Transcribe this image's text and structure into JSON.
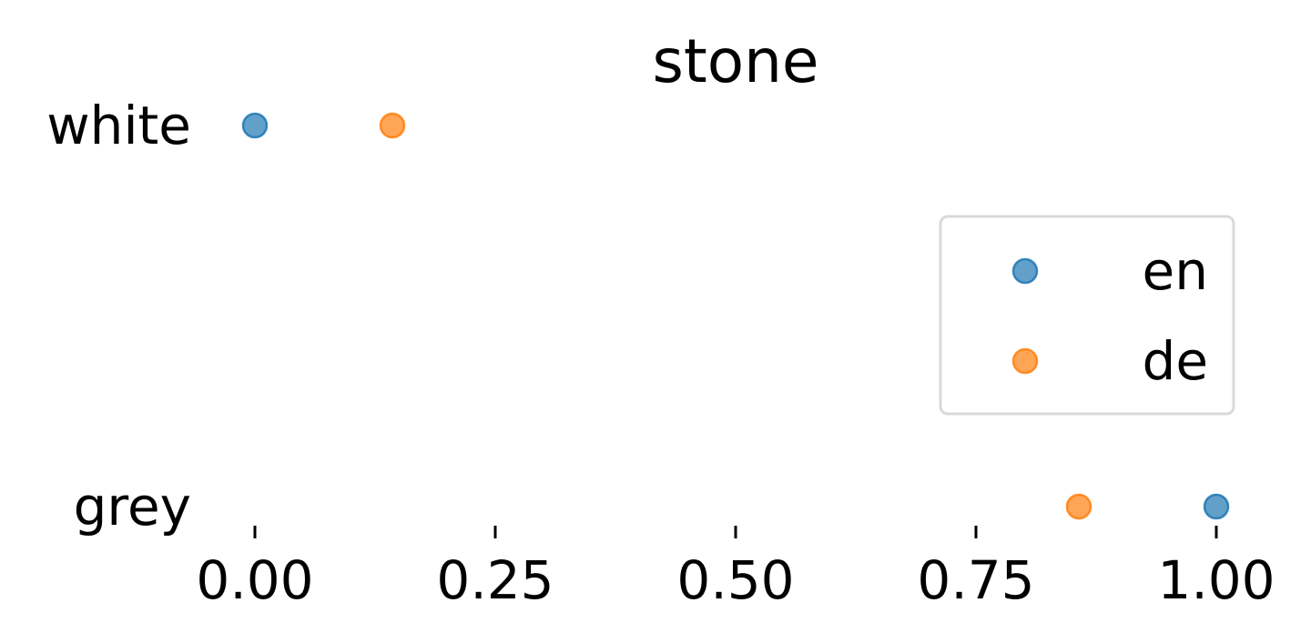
{
  "chart_data": {
    "type": "scatter",
    "title": "stone",
    "xlabel": "",
    "ylabel": "",
    "xlim": [
      0.0,
      1.0
    ],
    "x_ticks": [
      {
        "value": 0.0,
        "label": "0.00"
      },
      {
        "value": 0.25,
        "label": "0.25"
      },
      {
        "value": 0.5,
        "label": "0.50"
      },
      {
        "value": 0.75,
        "label": "0.75"
      },
      {
        "value": 1.0,
        "label": "1.00"
      }
    ],
    "categories": [
      "white",
      "grey"
    ],
    "series": [
      {
        "name": "en",
        "color": "#1f77b4",
        "values": [
          0.0,
          1.0
        ]
      },
      {
        "name": "de",
        "color": "#ff7f0e",
        "values": [
          0.143,
          0.857
        ]
      }
    ],
    "grid": false,
    "legend_position": "right"
  }
}
